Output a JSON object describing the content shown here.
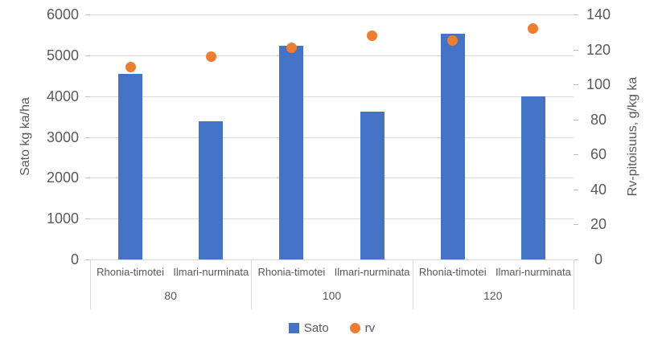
{
  "chart_data": {
    "type": "bar",
    "title": "",
    "groups": [
      "80",
      "100",
      "120"
    ],
    "categories": [
      "Rhonia-timotei",
      "Ilmari-nurminata",
      "Rhonia-timotei",
      "Ilmari-nurminata",
      "Rhonia-timotei",
      "Ilmari-nurminata"
    ],
    "series": [
      {
        "name": "Sato",
        "type": "bar",
        "axis": "left",
        "color": "#4472C4",
        "values": [
          4550,
          3380,
          5230,
          3620,
          5530,
          4000
        ]
      },
      {
        "name": "rv",
        "type": "scatter",
        "axis": "right",
        "color": "#ED7D31",
        "values": [
          110,
          116,
          121,
          128,
          125,
          132
        ]
      }
    ],
    "left_axis": {
      "label": "Sato kg ka/ha",
      "min": 0,
      "max": 6000,
      "step": 1000
    },
    "right_axis": {
      "label": "Rv-pitoisuus, g/kg ka",
      "min": 0,
      "max": 140,
      "step": 20
    },
    "legend": {
      "position": "bottom",
      "items": [
        "Sato",
        "rv"
      ]
    },
    "grid": true,
    "colors": {
      "grid": "#D9D9D9",
      "axis_text": "#595959",
      "background": "#FFFFFF"
    }
  }
}
